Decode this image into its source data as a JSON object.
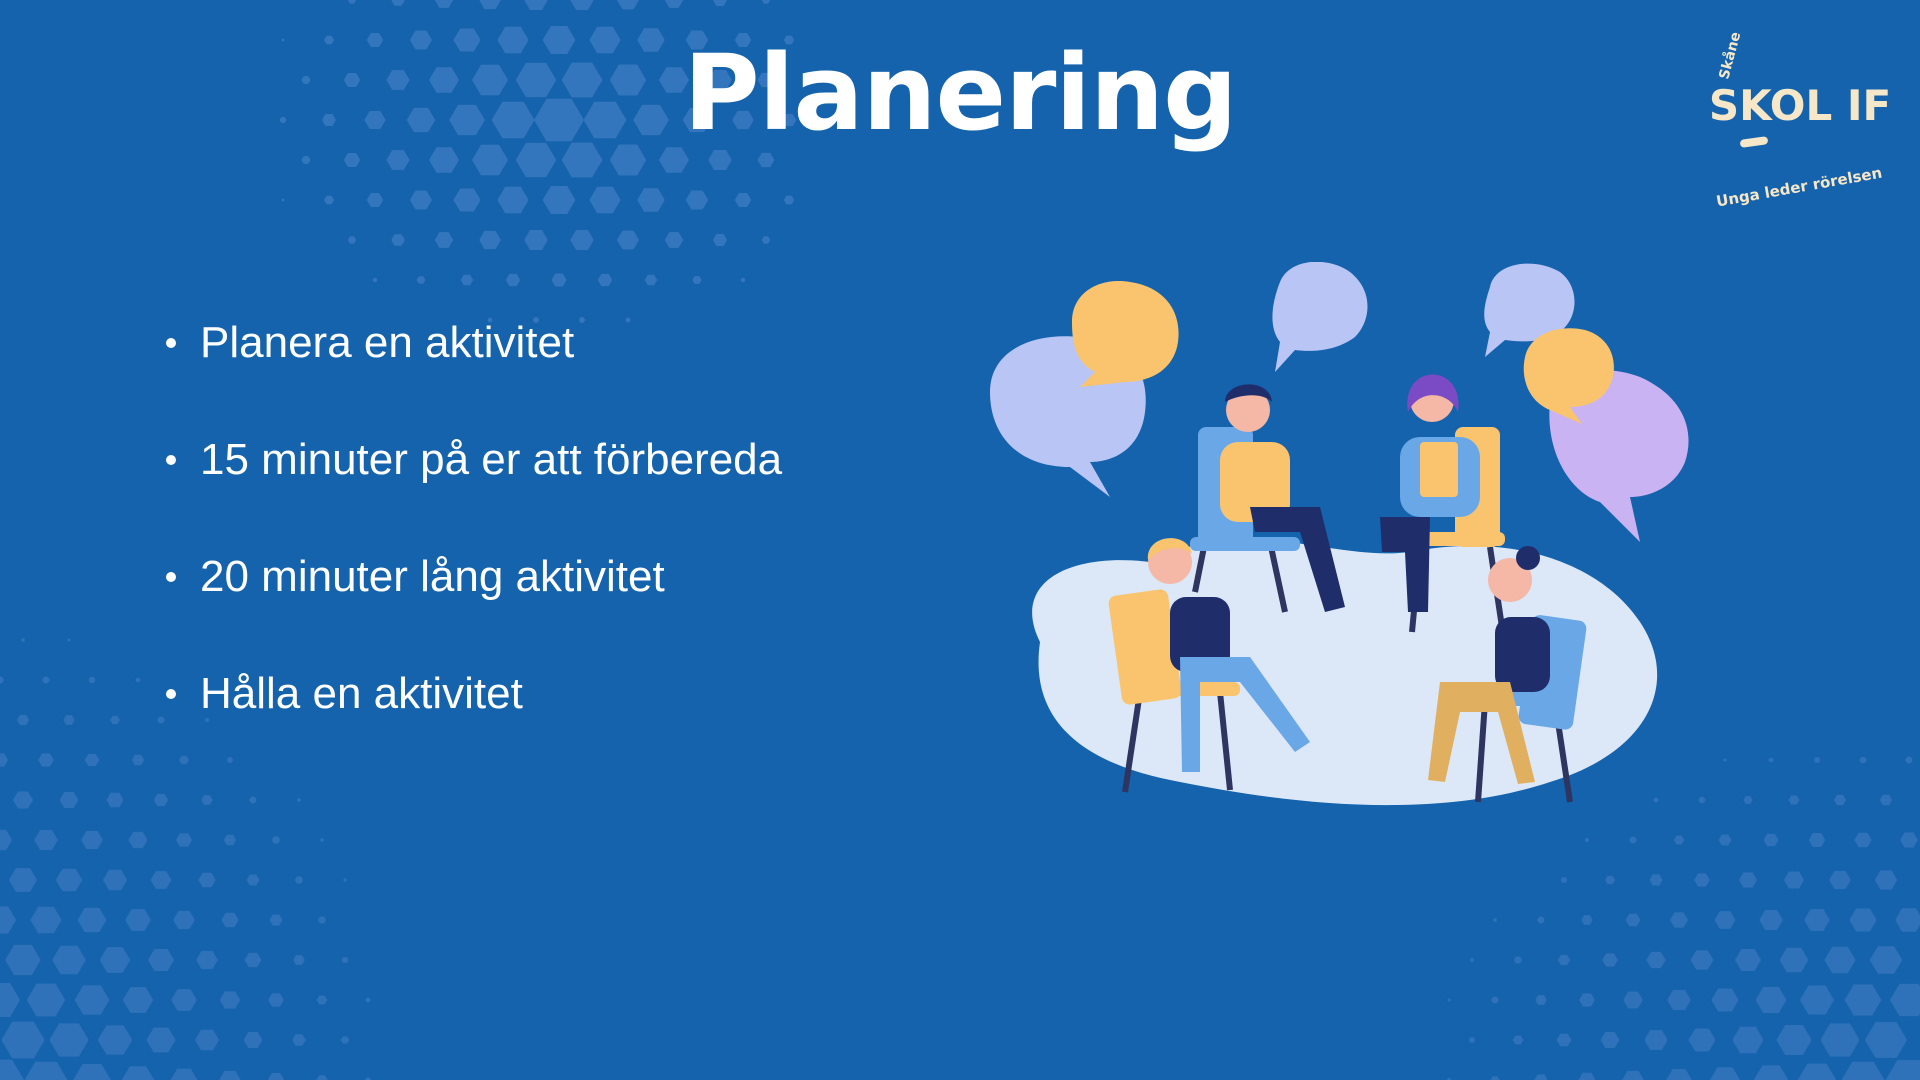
{
  "slide": {
    "title": "Planering",
    "bullets": [
      "Planera en aktivitet",
      "15 minuter på er att förbereda",
      "20 minuter lång aktivitet",
      "Hålla en aktivitet"
    ]
  },
  "logo": {
    "top_text": "Skåne",
    "main_text": "SKOL IF",
    "tagline": "Unga leder rörelsen"
  },
  "colors": {
    "background": "#1563ad",
    "hexagon": "#5b8fd0",
    "logo_cream": "#f6e7c8",
    "bubble_blue": "#b9c5f5",
    "bubble_orange": "#f9c46d",
    "bubble_purple": "#c9b3f2",
    "floor": "#dce7f8"
  },
  "icons": {
    "illustration": "group-discussion-illustration",
    "logo": "skol-if-logo"
  }
}
